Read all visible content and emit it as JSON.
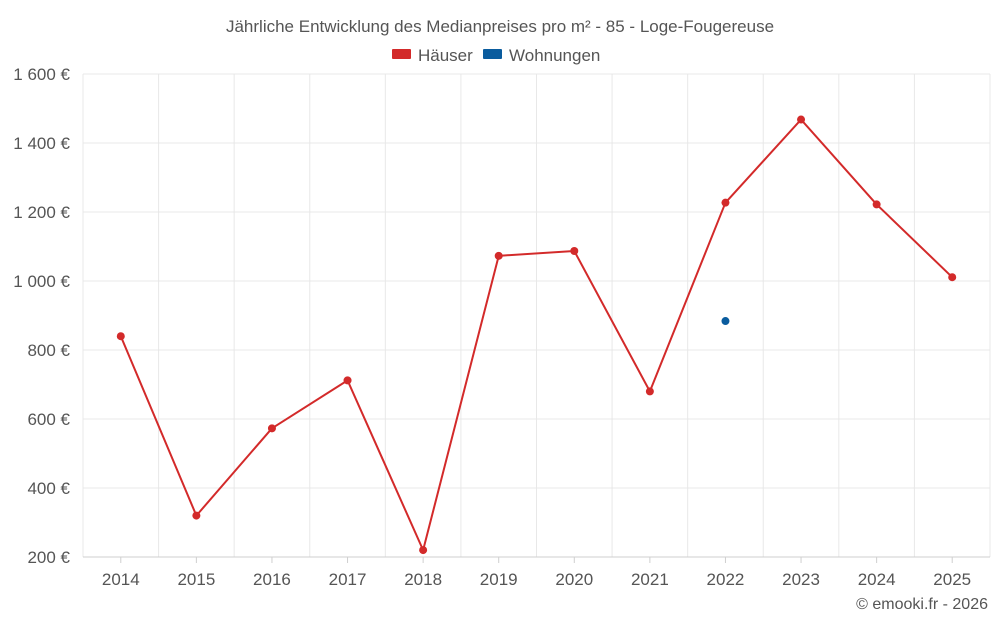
{
  "colors": {
    "houses": "#d32a2a",
    "apartments": "#0a5c9e"
  },
  "credit": "© emooki.fr - 2026",
  "chart_data": {
    "type": "line",
    "title": "Jährliche Entwicklung des Medianpreises pro m² - 85 - Loge-Fougereuse",
    "xlabel": "",
    "ylabel": "",
    "categories": [
      "2014",
      "2015",
      "2016",
      "2017",
      "2018",
      "2019",
      "2020",
      "2021",
      "2022",
      "2023",
      "2024",
      "2025"
    ],
    "ylim": [
      200,
      1600
    ],
    "yticks": [
      200,
      400,
      600,
      800,
      1000,
      1200,
      1400,
      1600
    ],
    "ytick_labels": [
      "200 €",
      "400 €",
      "600 €",
      "800 €",
      "1 000 €",
      "1 200 €",
      "1 400 €",
      "1 600 €"
    ],
    "grid": true,
    "legend_position": "top-center",
    "series": [
      {
        "name": "Häuser",
        "color": "#d32a2a",
        "values": [
          840,
          320,
          573,
          712,
          220,
          1073,
          1087,
          680,
          1227,
          1468,
          1222,
          1011
        ]
      },
      {
        "name": "Wohnungen",
        "color": "#0a5c9e",
        "values": [
          null,
          null,
          null,
          null,
          null,
          null,
          null,
          null,
          884,
          null,
          null,
          null
        ]
      }
    ]
  }
}
